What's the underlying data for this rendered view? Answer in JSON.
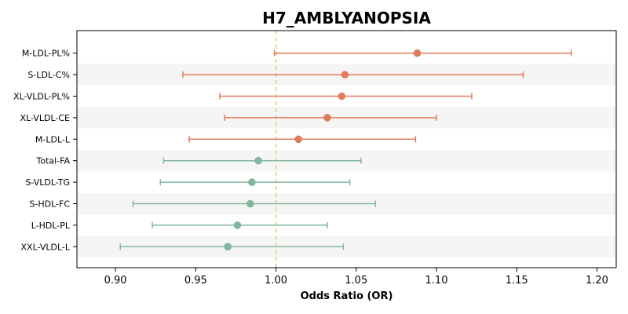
{
  "chart_data": {
    "type": "forest",
    "title": "H7_AMBLYANOPSIA",
    "xlabel": "Odds Ratio (OR)",
    "ylabel": "",
    "xlim": [
      0.876,
      1.212
    ],
    "xticks": [
      0.9,
      0.95,
      1.0,
      1.05,
      1.1,
      1.15,
      1.2
    ],
    "xtick_labels": [
      "0.90",
      "0.95",
      "1.00",
      "1.05",
      "1.10",
      "1.15",
      "1.20"
    ],
    "reference_line": 1.0,
    "alternating_row_bands": true,
    "colors": {
      "positive": "#E07B5E",
      "negative": "#82B79E",
      "reference": "#F2C27E",
      "band": "#F5F5F5"
    },
    "rows": [
      {
        "label": "M-LDL-PL%",
        "or": 1.088,
        "lo": 0.999,
        "hi": 1.184,
        "group": "positive"
      },
      {
        "label": "S-LDL-C%",
        "or": 1.043,
        "lo": 0.942,
        "hi": 1.154,
        "group": "positive"
      },
      {
        "label": "XL-VLDL-PL%",
        "or": 1.041,
        "lo": 0.965,
        "hi": 1.122,
        "group": "positive"
      },
      {
        "label": "XL-VLDL-CE",
        "or": 1.032,
        "lo": 0.968,
        "hi": 1.1,
        "group": "positive"
      },
      {
        "label": "M-LDL-L",
        "or": 1.014,
        "lo": 0.946,
        "hi": 1.087,
        "group": "positive"
      },
      {
        "label": "Total-FA",
        "or": 0.989,
        "lo": 0.93,
        "hi": 1.053,
        "group": "negative"
      },
      {
        "label": "S-VLDL-TG",
        "or": 0.985,
        "lo": 0.928,
        "hi": 1.046,
        "group": "negative"
      },
      {
        "label": "S-HDL-FC",
        "or": 0.984,
        "lo": 0.911,
        "hi": 1.062,
        "group": "negative"
      },
      {
        "label": "L-HDL-PL",
        "or": 0.976,
        "lo": 0.923,
        "hi": 1.032,
        "group": "negative"
      },
      {
        "label": "XXL-VLDL-L",
        "or": 0.97,
        "lo": 0.903,
        "hi": 1.042,
        "group": "negative"
      }
    ]
  }
}
